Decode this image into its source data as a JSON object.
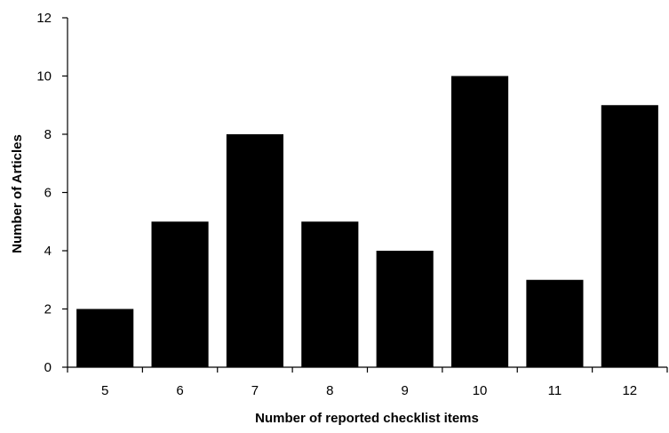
{
  "chart_data": {
    "type": "bar",
    "categories": [
      "5",
      "6",
      "7",
      "8",
      "9",
      "10",
      "11",
      "12"
    ],
    "values": [
      2,
      5,
      8,
      5,
      4,
      10,
      3,
      9
    ],
    "title": "",
    "xlabel": "Number of reported checklist items",
    "ylabel": "Number of Articles",
    "ylim": [
      0,
      12
    ],
    "yticks": [
      "0",
      "2",
      "4",
      "6",
      "8",
      "10",
      "12"
    ],
    "bar_color": "#000000",
    "grid": false,
    "legend": "none"
  }
}
